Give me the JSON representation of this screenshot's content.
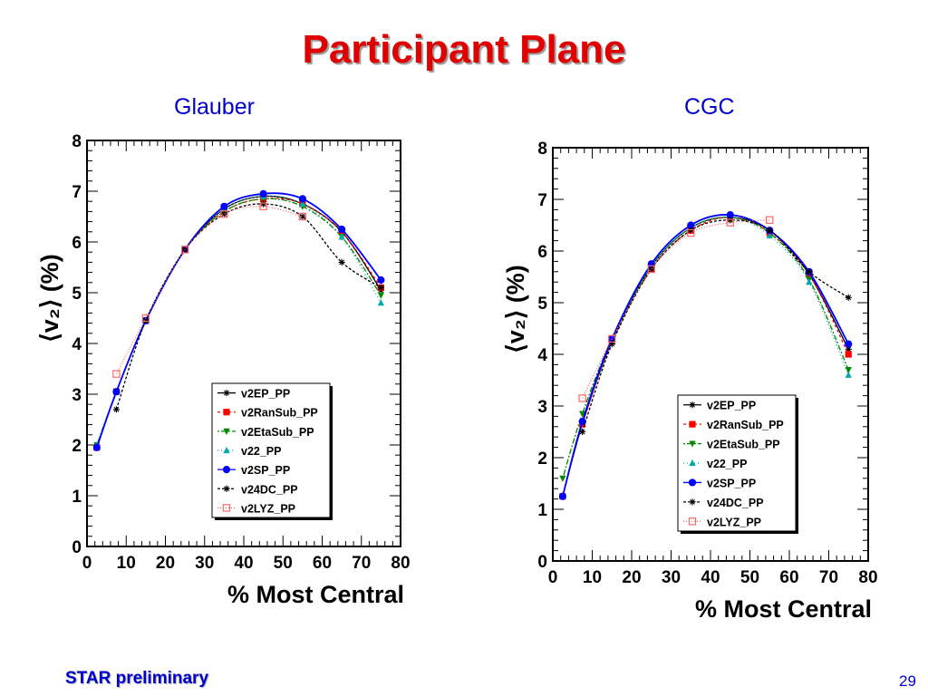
{
  "slide": {
    "title": "Participant Plane",
    "footer": "STAR preliminary",
    "page_number": "29"
  },
  "colors": {
    "title": "#e00000",
    "heading": "#0000cc",
    "v2EP_PP": "#000000",
    "v2RanSub_PP": "#ff0000",
    "v2EtaSub_PP": "#008800",
    "v22_PP": "#00aaaa",
    "v2SP_PP": "#0000ff",
    "v24DC_PP": "#000000",
    "v2LYZ_PP": "#ff6666"
  },
  "chart_data": [
    {
      "type": "line",
      "heading": "Glauber",
      "xlabel": "% Most Central",
      "ylabel": "⟨v₂⟩ (%)",
      "xlim": [
        0,
        80
      ],
      "ylim": [
        0,
        8
      ],
      "x_ticks": [
        0,
        10,
        20,
        30,
        40,
        50,
        60,
        70,
        80
      ],
      "y_ticks": [
        0,
        1,
        2,
        3,
        4,
        5,
        6,
        7,
        8
      ],
      "legend_position": "bottom-center",
      "series": [
        {
          "name": "v2EP_PP",
          "marker": "star",
          "dash": "",
          "x": [
            2.5,
            7.5,
            15,
            25,
            35,
            45,
            55,
            65,
            75
          ],
          "y": [
            1.95,
            3.05,
            4.45,
            5.85,
            6.65,
            6.9,
            6.75,
            6.2,
            5.05
          ]
        },
        {
          "name": "v2RanSub_PP",
          "marker": "square",
          "dash": "3,3",
          "x": [
            2.5,
            7.5,
            15,
            25,
            35,
            45,
            55,
            65,
            75
          ],
          "y": [
            1.95,
            3.05,
            4.45,
            5.85,
            6.6,
            6.85,
            6.75,
            6.2,
            5.1
          ]
        },
        {
          "name": "v2EtaSub_PP",
          "marker": "triangle-down",
          "dash": "2,2,6,2",
          "x": [
            2.5,
            7.5,
            15,
            25,
            35,
            45,
            55,
            65,
            75
          ],
          "y": [
            2.0,
            3.05,
            4.45,
            5.85,
            6.6,
            6.85,
            6.7,
            6.1,
            4.95
          ]
        },
        {
          "name": "v22_PP",
          "marker": "triangle-up",
          "dash": "1,3",
          "x": [
            2.5,
            7.5,
            15,
            25,
            35,
            45,
            55,
            65,
            75
          ],
          "y": [
            2.0,
            3.05,
            4.45,
            5.85,
            6.65,
            6.9,
            6.75,
            6.1,
            4.8
          ]
        },
        {
          "name": "v2SP_PP",
          "marker": "circle",
          "dash": "",
          "x": [
            2.5,
            7.5,
            15,
            25,
            35,
            45,
            55,
            65,
            75
          ],
          "y": [
            1.95,
            3.05,
            4.45,
            5.85,
            6.7,
            6.95,
            6.85,
            6.25,
            5.25
          ]
        },
        {
          "name": "v24DC_PP",
          "marker": "star",
          "dash": "3,2",
          "x": [
            7.5,
            15,
            25,
            35,
            45,
            55,
            65,
            75
          ],
          "y": [
            2.7,
            4.45,
            5.85,
            6.55,
            6.75,
            6.5,
            5.6,
            5.1
          ]
        },
        {
          "name": "v2LYZ_PP",
          "marker": "open-square",
          "dash": "1,2",
          "x": [
            7.5,
            15,
            25,
            35,
            45,
            55
          ],
          "y": [
            3.4,
            4.5,
            5.85,
            6.55,
            6.7,
            6.5
          ]
        }
      ]
    },
    {
      "type": "line",
      "heading": "CGC",
      "xlabel": "% Most Central",
      "ylabel": "⟨v₂⟩ (%)",
      "xlim": [
        0,
        80
      ],
      "ylim": [
        0,
        8
      ],
      "x_ticks": [
        0,
        10,
        20,
        30,
        40,
        50,
        60,
        70,
        80
      ],
      "y_ticks": [
        0,
        1,
        2,
        3,
        4,
        5,
        6,
        7,
        8
      ],
      "legend_position": "bottom-right",
      "series": [
        {
          "name": "v2EP_PP",
          "marker": "star",
          "dash": "",
          "x": [
            2.5,
            7.5,
            15,
            25,
            35,
            45,
            55,
            65,
            75
          ],
          "y": [
            1.25,
            2.65,
            4.25,
            5.7,
            6.45,
            6.65,
            6.4,
            5.55,
            4.1
          ]
        },
        {
          "name": "v2RanSub_PP",
          "marker": "square",
          "dash": "3,3",
          "x": [
            2.5,
            7.5,
            15,
            25,
            35,
            45,
            55,
            65,
            75
          ],
          "y": [
            1.25,
            2.65,
            4.25,
            5.65,
            6.4,
            6.65,
            6.35,
            5.55,
            4.0
          ]
        },
        {
          "name": "v2EtaSub_PP",
          "marker": "triangle-down",
          "dash": "2,2,6,2",
          "x": [
            2.5,
            7.5,
            15,
            25,
            35,
            45,
            55,
            65,
            75
          ],
          "y": [
            1.6,
            2.85,
            4.3,
            5.7,
            6.45,
            6.65,
            6.35,
            5.45,
            3.7
          ]
        },
        {
          "name": "v22_PP",
          "marker": "triangle-up",
          "dash": "1,3",
          "x": [
            2.5,
            7.5,
            15,
            25,
            35,
            45,
            55,
            65,
            75
          ],
          "y": [
            1.25,
            2.7,
            4.25,
            5.7,
            6.45,
            6.65,
            6.3,
            5.4,
            3.6
          ]
        },
        {
          "name": "v2SP_PP",
          "marker": "circle",
          "dash": "",
          "x": [
            2.5,
            7.5,
            15,
            25,
            35,
            45,
            55,
            65,
            75
          ],
          "y": [
            1.25,
            2.7,
            4.3,
            5.75,
            6.5,
            6.7,
            6.4,
            5.6,
            4.2
          ]
        },
        {
          "name": "v24DC_PP",
          "marker": "star",
          "dash": "3,2",
          "x": [
            7.5,
            15,
            25,
            35,
            45,
            55,
            65,
            75
          ],
          "y": [
            2.5,
            4.2,
            5.65,
            6.4,
            6.6,
            6.4,
            5.6,
            5.1
          ]
        },
        {
          "name": "v2LYZ_PP",
          "marker": "open-square",
          "dash": "1,2",
          "x": [
            7.5,
            15,
            25,
            35,
            45,
            55
          ],
          "y": [
            3.15,
            4.3,
            5.65,
            6.35,
            6.55,
            6.6
          ]
        }
      ]
    }
  ]
}
